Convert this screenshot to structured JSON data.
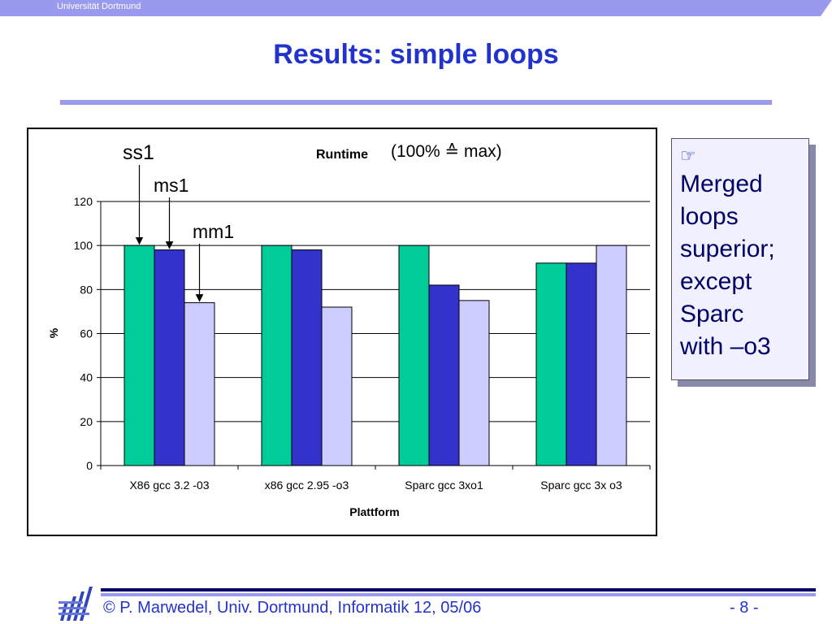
{
  "header": {
    "university": "Universität Dortmund"
  },
  "slide": {
    "title": "Results: simple loops"
  },
  "callout": {
    "icon": "pointing-hand-icon",
    "lines": [
      "Merged",
      "loops",
      "superior;",
      "except",
      "Sparc",
      "with –o3"
    ]
  },
  "annotations": {
    "ss1": "ss1",
    "ms1": "ms1",
    "mm1": "mm1",
    "subtitle": "(100% ≙ max)"
  },
  "footer": {
    "text": "© P. Marwedel, Univ. Dortmund, Informatik 12, 05/06",
    "page": "-  8 -"
  },
  "colors": {
    "ss1": "#00cc99",
    "ms1": "#3333cc",
    "mm1": "#ccccff",
    "accent": "#2233cc"
  },
  "chart_data": {
    "type": "bar",
    "title": "Runtime",
    "xlabel": "Plattform",
    "ylabel": "%",
    "ylim": [
      0,
      120
    ],
    "yticks": [
      0,
      20,
      40,
      60,
      80,
      100,
      120
    ],
    "grid": true,
    "categories": [
      "X86 gcc 3.2 -03",
      "x86 gcc 2.95 -o3",
      "Sparc gcc 3xo1",
      "Sparc gcc 3x o3"
    ],
    "series": [
      {
        "name": "ss1",
        "values": [
          100,
          100,
          100,
          92
        ]
      },
      {
        "name": "ms1",
        "values": [
          98,
          98,
          82,
          92
        ]
      },
      {
        "name": "mm1",
        "values": [
          74,
          72,
          75,
          100
        ]
      }
    ]
  }
}
